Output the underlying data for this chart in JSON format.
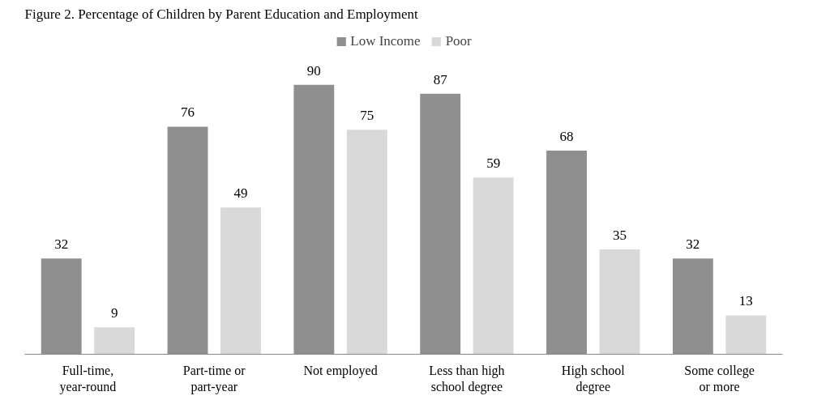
{
  "chart_data": {
    "type": "bar",
    "title": "Figure 2. Percentage of Children by Parent Education and  Employment",
    "categories": [
      "Full-time,\nyear-round",
      "Part-time or\npart-year",
      "Not employed",
      "Less than high\nschool degree",
      "High school\ndegree",
      "Some college\nor more"
    ],
    "series": [
      {
        "name": "Low Income",
        "color": "#8f8f8f",
        "values": [
          32,
          76,
          90,
          87,
          68,
          32
        ]
      },
      {
        "name": "Poor",
        "color": "#d9d9d9",
        "values": [
          9,
          49,
          75,
          59,
          35,
          13
        ]
      }
    ],
    "data_labels": true,
    "legend": "top",
    "grid": false
  }
}
